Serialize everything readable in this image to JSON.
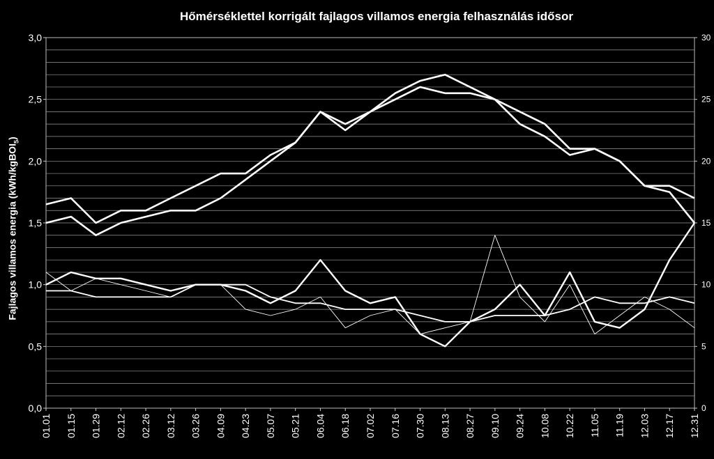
{
  "chart_data": {
    "type": "line",
    "title": "Hőmérséklettel korrigált fajlagos villamos energia felhasználás idősor",
    "ylabel_main": "Fajlagos villamos energia (kWh/kgBOI",
    "ylabel_sub": "5",
    "ylabel_end": ")",
    "ylim": [
      0,
      3
    ],
    "y_ticks": [
      "0,0",
      "0,5",
      "1,0",
      "1,5",
      "2,0",
      "2,5",
      "3,0"
    ],
    "y2lim": [
      0,
      30
    ],
    "y2_ticks": [
      "0",
      "5",
      "10",
      "15",
      "20",
      "25",
      "30"
    ],
    "x_ticks": [
      "01.01",
      "01.15",
      "01.29",
      "02.12",
      "02.26",
      "03.12",
      "03.26",
      "04.09",
      "04.23",
      "05.07",
      "05.21",
      "06.04",
      "06.18",
      "07.02",
      "07.16",
      "07.30",
      "08.13",
      "08.27",
      "09.10",
      "09.24",
      "10.08",
      "10.22",
      "11.05",
      "11.19",
      "12.03",
      "12.17",
      "12.31"
    ],
    "grid": true,
    "series": [
      {
        "axis": "right",
        "x": [
          0,
          14,
          28,
          42,
          56,
          70,
          84,
          98,
          112,
          126,
          140,
          154,
          168,
          182,
          196,
          210,
          224,
          238,
          252,
          266,
          280,
          294,
          308,
          322,
          336,
          350,
          364
        ],
        "values": [
          16.5,
          17,
          15,
          16,
          16,
          17,
          18,
          19,
          19,
          20.5,
          21.5,
          24,
          23,
          24,
          25.5,
          26.5,
          27,
          26,
          25,
          24,
          23,
          21,
          21,
          20,
          18,
          18,
          17
        ],
        "color": "#ffffff",
        "width": 2.6
      },
      {
        "axis": "right",
        "x": [
          0,
          14,
          28,
          42,
          56,
          70,
          84,
          98,
          112,
          126,
          140,
          154,
          168,
          182,
          196,
          210,
          224,
          238,
          252,
          266,
          280,
          294,
          308,
          322,
          336,
          350,
          364
        ],
        "values": [
          15,
          15.5,
          14,
          15,
          15.5,
          16,
          16,
          17,
          18.5,
          20,
          21.5,
          24,
          22.5,
          24,
          25,
          26,
          25.5,
          25.5,
          25,
          23,
          22,
          20.5,
          21,
          20,
          18,
          17.5,
          15
        ],
        "color": "#ffffff",
        "width": 2.6
      },
      {
        "axis": "left",
        "x": [
          0,
          14,
          28,
          42,
          56,
          70,
          84,
          98,
          112,
          126,
          140,
          154,
          168,
          182,
          196,
          210,
          224,
          238,
          252,
          266,
          280,
          294,
          308,
          322,
          336,
          350,
          364
        ],
        "values": [
          1.0,
          1.1,
          1.05,
          1.05,
          1.0,
          0.95,
          1.0,
          1.0,
          0.95,
          0.85,
          0.95,
          1.2,
          0.95,
          0.85,
          0.9,
          0.6,
          0.5,
          0.7,
          0.8,
          1.0,
          0.75,
          1.1,
          0.7,
          0.65,
          0.8,
          1.2,
          1.5
        ],
        "color": "#ffffff",
        "width": 2.4
      },
      {
        "axis": "left",
        "x": [
          0,
          14,
          28,
          42,
          56,
          70,
          84,
          98,
          112,
          126,
          140,
          154,
          168,
          182,
          196,
          210,
          224,
          238,
          252,
          266,
          280,
          294,
          308,
          322,
          336,
          350,
          364
        ],
        "values": [
          0.95,
          0.95,
          0.9,
          0.9,
          0.9,
          0.9,
          1.0,
          1.0,
          1.0,
          0.9,
          0.85,
          0.85,
          0.8,
          0.8,
          0.8,
          0.75,
          0.7,
          0.7,
          0.75,
          0.75,
          0.75,
          0.8,
          0.9,
          0.85,
          0.85,
          0.9,
          0.85
        ],
        "color": "#ffffff",
        "width": 1.8
      },
      {
        "axis": "left",
        "x": [
          0,
          14,
          28,
          42,
          56,
          70,
          84,
          98,
          112,
          126,
          140,
          154,
          168,
          182,
          196,
          210,
          224,
          238,
          252,
          266,
          280,
          294,
          308,
          322,
          336,
          350,
          364
        ],
        "values": [
          1.1,
          0.95,
          1.05,
          1.0,
          0.95,
          0.9,
          1.0,
          1.0,
          0.8,
          0.75,
          0.8,
          0.9,
          0.65,
          0.75,
          0.8,
          0.6,
          0.65,
          0.7,
          1.4,
          0.9,
          0.7,
          1.0,
          0.6,
          0.75,
          0.9,
          0.8,
          0.65
        ],
        "color": "#ffffff",
        "width": 0.9
      }
    ],
    "legend": {
      "position": "top-left",
      "entries": []
    }
  }
}
